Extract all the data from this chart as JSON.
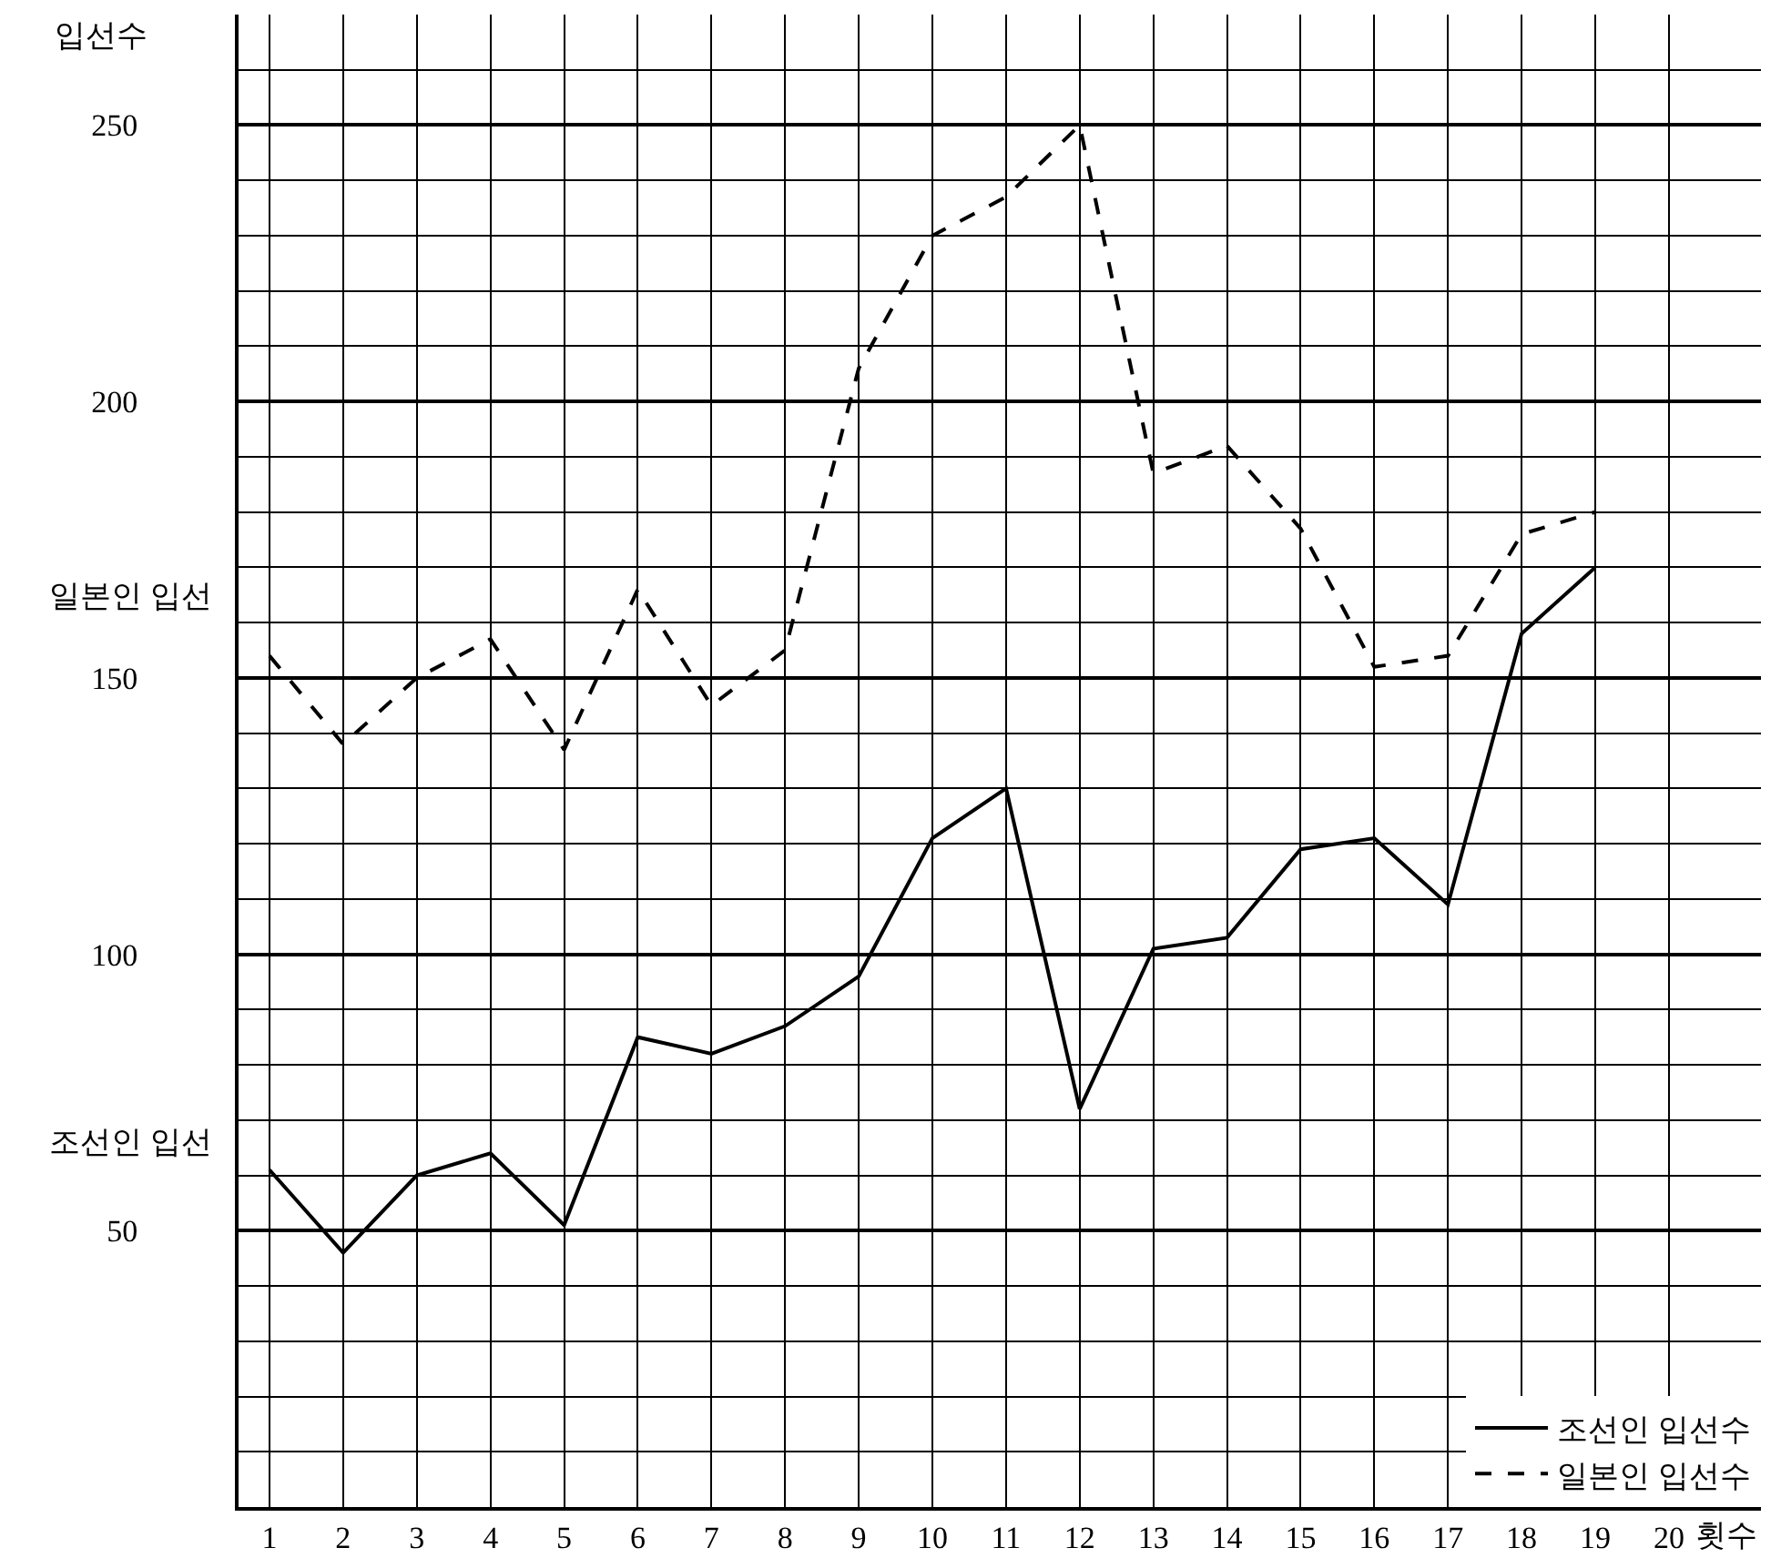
{
  "chart_data": {
    "type": "line",
    "ylabel": "입선수",
    "xlabel": "횟수",
    "x": [
      1,
      2,
      3,
      4,
      5,
      6,
      7,
      8,
      9,
      10,
      11,
      12,
      13,
      14,
      15,
      16,
      17,
      18,
      19
    ],
    "xlim": [
      0.58,
      21.25
    ],
    "xticks": [
      1,
      2,
      3,
      4,
      5,
      6,
      7,
      8,
      9,
      10,
      11,
      12,
      13,
      14,
      15,
      16,
      17,
      18,
      19,
      20
    ],
    "ylim": [
      0,
      270
    ],
    "yticks": [
      50,
      100,
      150,
      200,
      250
    ],
    "grid": true,
    "legend": "bottom right",
    "marker": "none",
    "series": [
      {
        "name": "조선인 입선수",
        "color": "#000000",
        "line_style": "solid",
        "values": [
          61,
          46,
          60,
          64,
          51,
          85,
          82,
          87,
          96,
          121,
          130,
          72,
          101,
          103,
          119,
          121,
          109,
          158,
          170
        ]
      },
      {
        "name": "일본인 입선수",
        "color": "#000000",
        "line_style": "dashed",
        "values": [
          154,
          138,
          150,
          157,
          137,
          166,
          145,
          155,
          206,
          230,
          237,
          250,
          187,
          192,
          177,
          152,
          154,
          176,
          180
        ]
      }
    ],
    "annotations": [
      "일본인 입선",
      "조선인 입선"
    ]
  }
}
